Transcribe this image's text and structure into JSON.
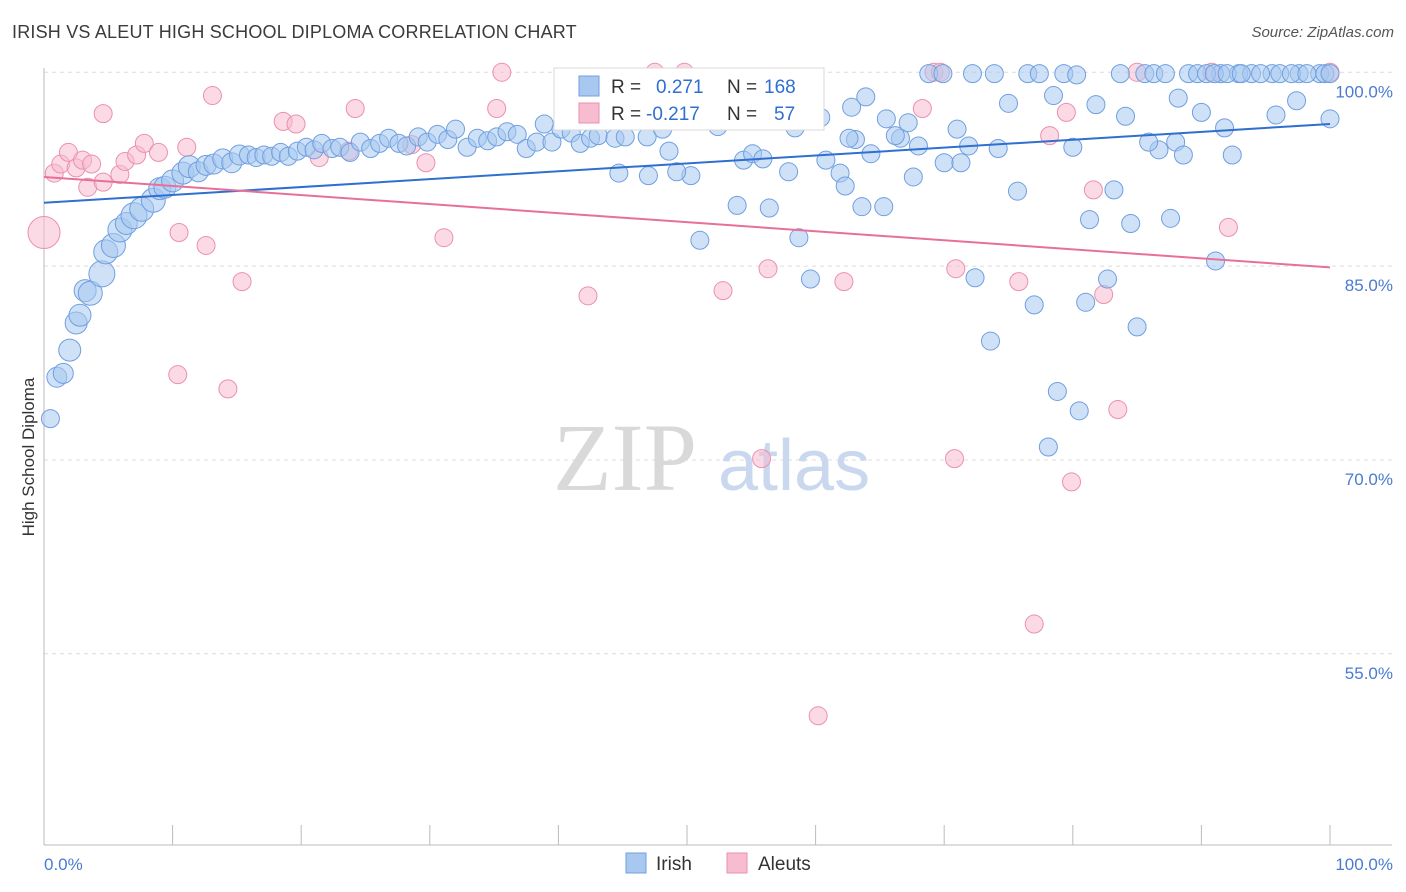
{
  "title": "IRISH VS ALEUT HIGH SCHOOL DIPLOMA CORRELATION CHART",
  "source": "Source: ZipAtlas.com",
  "watermark": {
    "zip": "ZIP",
    "atlas": "atlas"
  },
  "legend_box": {
    "irish": {
      "r_label": "R =",
      "r_value": "0.271",
      "n_label": "N =",
      "n_value": "168"
    },
    "aleuts": {
      "r_label": "R =",
      "r_value": "-0.217",
      "n_label": "N =",
      "n_value": "57"
    }
  },
  "bottom_legend": {
    "irish": "Irish",
    "aleuts": "Aleuts"
  },
  "colors": {
    "irish_fill": "#a8c8f0",
    "irish_stroke": "#6f9fe0",
    "irish_line": "#2f6fd0",
    "aleut_fill": "#f7bcd0",
    "aleut_stroke": "#eb90b0",
    "aleut_line": "#e87098",
    "tick_label": "#4a7bd0"
  },
  "chart_data": {
    "type": "scatter",
    "title": "IRISH VS ALEUT HIGH SCHOOL DIPLOMA CORRELATION CHART",
    "xlabel": "",
    "ylabel": "High School Diploma",
    "xlim": [
      0,
      100
    ],
    "ylim": [
      40.2,
      102.5
    ],
    "x_ticks": [
      {
        "value": 0,
        "label": "0.0%"
      },
      {
        "value": 100,
        "label": "100.0%"
      }
    ],
    "y_ticks": [
      {
        "value": 100,
        "label": "100.0%"
      },
      {
        "value": 85,
        "label": "85.0%"
      },
      {
        "value": 70,
        "label": "70.0%"
      },
      {
        "value": 55,
        "label": "55.0%"
      }
    ],
    "grid": "horizontal dashed",
    "legend_position": "top-center",
    "series": [
      {
        "name": "Irish",
        "trend": {
          "x0": 0,
          "y0": 89.9,
          "x1": 100,
          "y1": 96.0
        },
        "points": [
          [
            0.5,
            73.2,
            9
          ],
          [
            1.0,
            76.4,
            10
          ],
          [
            1.5,
            76.7,
            10
          ],
          [
            2.0,
            78.5,
            11
          ],
          [
            2.5,
            80.6,
            11
          ],
          [
            2.8,
            81.2,
            11
          ],
          [
            3.2,
            83.1,
            11
          ],
          [
            3.6,
            82.9,
            12
          ],
          [
            4.5,
            84.4,
            13
          ],
          [
            4.8,
            86.1,
            12
          ],
          [
            5.4,
            86.6,
            12
          ],
          [
            5.9,
            87.8,
            12
          ],
          [
            6.4,
            88.3,
            11
          ],
          [
            7.0,
            88.9,
            13
          ],
          [
            7.6,
            89.4,
            12
          ],
          [
            8.5,
            90.1,
            12
          ],
          [
            9.0,
            91.0,
            11
          ],
          [
            9.4,
            91.1,
            11
          ],
          [
            10.0,
            91.6,
            11
          ],
          [
            10.8,
            92.2,
            11
          ],
          [
            11.3,
            92.7,
            11
          ],
          [
            12.0,
            92.3,
            10
          ],
          [
            12.6,
            92.8,
            10
          ],
          [
            13.2,
            92.9,
            10
          ],
          [
            13.9,
            93.3,
            10
          ],
          [
            14.6,
            93.0,
            10
          ],
          [
            15.2,
            93.6,
            10
          ],
          [
            15.9,
            93.6,
            9
          ],
          [
            16.5,
            93.4,
            9
          ],
          [
            17.1,
            93.6,
            9
          ],
          [
            17.7,
            93.5,
            9
          ],
          [
            18.4,
            93.8,
            9
          ],
          [
            19.0,
            93.5,
            9
          ],
          [
            19.7,
            93.9,
            9
          ],
          [
            20.4,
            94.2,
            9
          ],
          [
            21.0,
            94.0,
            9
          ],
          [
            21.6,
            94.5,
            9
          ],
          [
            22.4,
            94.1,
            9
          ],
          [
            23.0,
            94.2,
            9
          ],
          [
            23.8,
            93.8,
            9
          ],
          [
            24.6,
            94.6,
            9
          ],
          [
            25.4,
            94.1,
            9
          ],
          [
            26.1,
            94.5,
            9
          ],
          [
            26.8,
            94.9,
            9
          ],
          [
            27.6,
            94.5,
            9
          ],
          [
            28.2,
            94.3,
            9
          ],
          [
            29.1,
            95.0,
            9
          ],
          [
            29.8,
            94.6,
            9
          ],
          [
            30.6,
            95.2,
            9
          ],
          [
            31.4,
            94.8,
            9
          ],
          [
            32.0,
            95.6,
            9
          ],
          [
            32.9,
            94.2,
            9
          ],
          [
            33.7,
            94.9,
            9
          ],
          [
            34.5,
            94.7,
            9
          ],
          [
            35.2,
            95.0,
            9
          ],
          [
            36.0,
            95.4,
            9
          ],
          [
            36.8,
            95.2,
            9
          ],
          [
            37.5,
            94.1,
            9
          ],
          [
            38.3,
            94.6,
            9
          ],
          [
            38.9,
            96.0,
            9
          ],
          [
            39.5,
            94.6,
            9
          ],
          [
            40.2,
            95.6,
            9
          ],
          [
            41.0,
            95.3,
            9
          ],
          [
            41.7,
            94.5,
            9
          ],
          [
            42.5,
            94.9,
            9
          ],
          [
            43.1,
            95.1,
            9
          ],
          [
            43.6,
            96.4,
            9
          ],
          [
            44.4,
            94.9,
            9
          ],
          [
            45.2,
            95.0,
            9
          ],
          [
            46.9,
            95.0,
            9
          ],
          [
            47.6,
            96.7,
            9
          ],
          [
            48.6,
            93.9,
            9
          ],
          [
            44.7,
            92.2,
            9
          ],
          [
            47.0,
            92.0,
            9
          ],
          [
            50.3,
            92.0,
            9
          ],
          [
            49.2,
            92.3,
            9
          ],
          [
            51.0,
            87.0,
            9
          ],
          [
            51.7,
            97.6,
            9
          ],
          [
            53.9,
            89.7,
            9
          ],
          [
            54.4,
            93.2,
            9
          ],
          [
            55.1,
            93.7,
            9
          ],
          [
            55.9,
            93.3,
            9
          ],
          [
            56.4,
            89.5,
            9
          ],
          [
            57.9,
            92.3,
            9
          ],
          [
            58.7,
            87.2,
            9
          ],
          [
            59.6,
            84.0,
            9
          ],
          [
            60.8,
            93.2,
            9
          ],
          [
            61.9,
            92.2,
            9
          ],
          [
            62.3,
            91.2,
            9
          ],
          [
            63.1,
            94.8,
            9
          ],
          [
            63.6,
            89.6,
            9
          ],
          [
            64.3,
            93.7,
            9
          ],
          [
            65.3,
            89.6,
            9
          ],
          [
            66.6,
            94.9,
            9
          ],
          [
            67.6,
            91.9,
            9
          ],
          [
            68.8,
            99.9,
            9
          ],
          [
            70.0,
            93.0,
            9
          ],
          [
            71.3,
            93.0,
            9
          ],
          [
            71.9,
            94.3,
            9
          ],
          [
            72.4,
            84.1,
            9
          ],
          [
            73.6,
            79.2,
            9
          ],
          [
            74.2,
            94.1,
            9
          ],
          [
            75.7,
            90.8,
            9
          ],
          [
            76.5,
            99.9,
            9
          ],
          [
            77.0,
            82.0,
            9
          ],
          [
            78.8,
            75.3,
            9
          ],
          [
            80.0,
            94.2,
            9
          ],
          [
            80.5,
            73.8,
            9
          ],
          [
            81.3,
            88.6,
            9
          ],
          [
            81.8,
            97.5,
            9
          ],
          [
            82.7,
            84.0,
            9
          ],
          [
            83.2,
            90.9,
            9
          ],
          [
            84.1,
            96.6,
            9
          ],
          [
            84.5,
            88.3,
            9
          ],
          [
            85.0,
            80.3,
            9
          ],
          [
            85.6,
            99.9,
            9
          ],
          [
            86.7,
            94.0,
            9
          ],
          [
            87.6,
            88.7,
            9
          ],
          [
            88.0,
            94.6,
            9
          ],
          [
            88.6,
            93.6,
            9
          ],
          [
            89.0,
            99.9,
            9
          ],
          [
            91.1,
            85.4,
            9
          ],
          [
            91.5,
            99.9,
            9
          ],
          [
            92.4,
            93.6,
            9
          ],
          [
            92.9,
            99.9,
            9
          ],
          [
            93.9,
            99.9,
            9
          ],
          [
            95.5,
            99.9,
            9
          ],
          [
            97.6,
            99.9,
            9
          ],
          [
            99.2,
            99.9,
            9
          ],
          [
            100.0,
            96.4,
            9
          ],
          [
            58.9,
            96.9,
            9
          ],
          [
            60.4,
            96.5,
            9
          ],
          [
            62.8,
            97.3,
            9
          ],
          [
            63.9,
            98.1,
            9
          ],
          [
            65.5,
            96.4,
            9
          ],
          [
            67.2,
            96.1,
            9
          ],
          [
            69.9,
            99.9,
            9
          ],
          [
            72.2,
            99.9,
            9
          ],
          [
            73.9,
            99.9,
            9
          ],
          [
            75.0,
            97.6,
            9
          ],
          [
            77.4,
            99.9,
            9
          ],
          [
            78.5,
            98.2,
            9
          ],
          [
            79.3,
            99.9,
            9
          ],
          [
            80.3,
            99.8,
            9
          ],
          [
            83.7,
            99.9,
            9
          ],
          [
            85.9,
            94.6,
            9
          ],
          [
            86.3,
            99.9,
            9
          ],
          [
            87.2,
            99.9,
            9
          ],
          [
            89.7,
            99.9,
            9
          ],
          [
            90.4,
            99.9,
            9
          ],
          [
            91.0,
            99.9,
            9
          ],
          [
            92.0,
            99.9,
            9
          ],
          [
            93.1,
            99.9,
            9
          ],
          [
            94.6,
            99.9,
            9
          ],
          [
            96.1,
            99.9,
            9
          ],
          [
            97.0,
            99.9,
            9
          ],
          [
            98.2,
            99.9,
            9
          ],
          [
            99.6,
            99.9,
            9
          ],
          [
            100.0,
            99.9,
            9
          ],
          [
            88.2,
            98.0,
            9
          ],
          [
            90.0,
            96.9,
            9
          ],
          [
            91.8,
            95.7,
            9
          ],
          [
            95.8,
            96.7,
            9
          ],
          [
            97.4,
            97.8,
            9
          ],
          [
            81.0,
            82.2,
            9
          ],
          [
            78.1,
            71.0,
            9
          ],
          [
            71.0,
            95.6,
            9
          ],
          [
            66.2,
            95.1,
            9
          ],
          [
            68.0,
            94.3,
            9
          ],
          [
            62.6,
            94.9,
            9
          ],
          [
            58.4,
            95.7,
            9
          ],
          [
            56.6,
            96.3,
            9
          ],
          [
            54.0,
            96.9,
            9
          ],
          [
            52.4,
            95.8,
            9
          ],
          [
            50.9,
            96.5,
            9
          ],
          [
            49.5,
            97.0,
            9
          ],
          [
            48.1,
            95.6,
            9
          ],
          [
            46.3,
            97.0,
            9
          ]
        ]
      },
      {
        "name": "Aleuts",
        "trend": {
          "x0": 0,
          "y0": 91.9,
          "x1": 100,
          "y1": 84.9
        },
        "points": [
          [
            0.0,
            87.6,
            16
          ],
          [
            0.8,
            92.2,
            9
          ],
          [
            1.3,
            92.9,
            9
          ],
          [
            1.9,
            93.8,
            9
          ],
          [
            2.5,
            92.6,
            9
          ],
          [
            3.0,
            93.2,
            9
          ],
          [
            3.7,
            92.9,
            9
          ],
          [
            3.4,
            91.1,
            9
          ],
          [
            4.6,
            91.5,
            9
          ],
          [
            4.6,
            96.8,
            9
          ],
          [
            5.9,
            92.1,
            9
          ],
          [
            6.3,
            93.1,
            9
          ],
          [
            7.2,
            93.6,
            9
          ],
          [
            7.8,
            94.5,
            9
          ],
          [
            8.9,
            93.8,
            9
          ],
          [
            10.5,
            87.6,
            9
          ],
          [
            10.4,
            76.6,
            9
          ],
          [
            11.1,
            94.2,
            9
          ],
          [
            12.6,
            86.6,
            9
          ],
          [
            13.1,
            98.2,
            9
          ],
          [
            14.3,
            75.5,
            9
          ],
          [
            15.4,
            83.8,
            9
          ],
          [
            18.6,
            96.2,
            9
          ],
          [
            19.6,
            96.0,
            9
          ],
          [
            21.4,
            93.4,
            9
          ],
          [
            23.7,
            93.9,
            9
          ],
          [
            24.2,
            97.2,
            9
          ],
          [
            28.6,
            94.4,
            9
          ],
          [
            29.7,
            93.0,
            9
          ],
          [
            31.1,
            87.2,
            9
          ],
          [
            35.2,
            97.2,
            9
          ],
          [
            35.6,
            100.0,
            9
          ],
          [
            42.3,
            82.7,
            9
          ],
          [
            47.5,
            100.0,
            9
          ],
          [
            49.8,
            100.0,
            9
          ],
          [
            52.8,
            83.1,
            9
          ],
          [
            55.8,
            70.1,
            9
          ],
          [
            56.3,
            84.8,
            9
          ],
          [
            60.2,
            50.2,
            9
          ],
          [
            62.2,
            83.8,
            9
          ],
          [
            69.2,
            100.0,
            9
          ],
          [
            69.7,
            100.0,
            9
          ],
          [
            70.8,
            70.1,
            9
          ],
          [
            70.9,
            84.8,
            9
          ],
          [
            75.8,
            83.8,
            9
          ],
          [
            77.0,
            57.3,
            9
          ],
          [
            78.2,
            95.1,
            9
          ],
          [
            79.5,
            96.9,
            9
          ],
          [
            79.9,
            68.3,
            9
          ],
          [
            81.6,
            90.9,
            9
          ],
          [
            82.4,
            82.8,
            9
          ],
          [
            83.5,
            73.9,
            9
          ],
          [
            85.0,
            100.0,
            9
          ],
          [
            90.8,
            100.0,
            9
          ],
          [
            92.1,
            88.0,
            9
          ],
          [
            100.0,
            100.0,
            9
          ],
          [
            68.3,
            97.2,
            9
          ]
        ]
      }
    ]
  }
}
